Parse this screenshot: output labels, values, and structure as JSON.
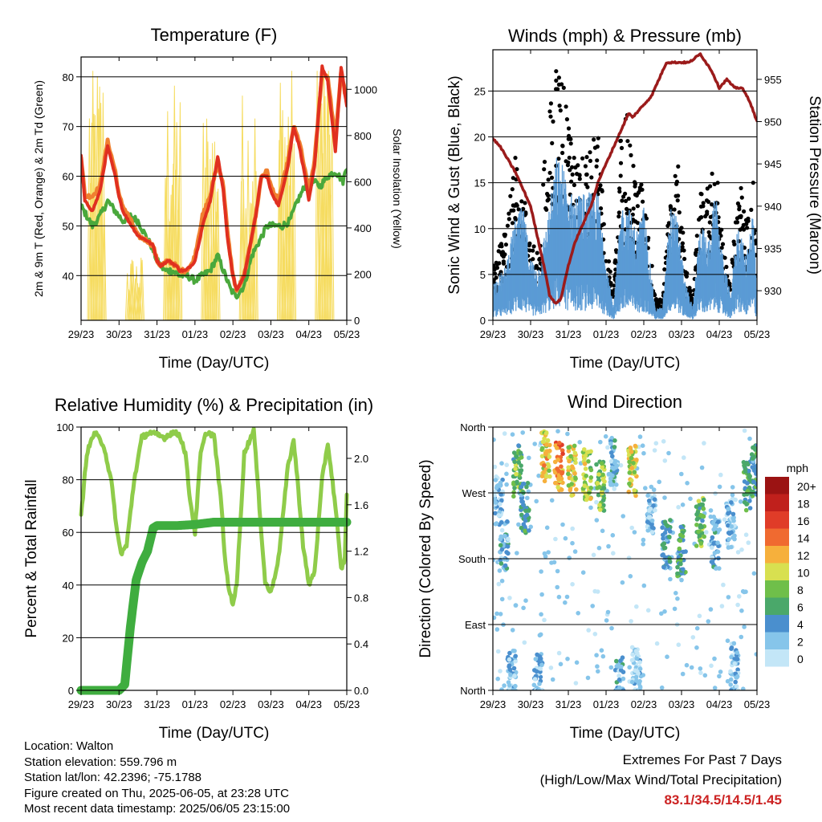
{
  "colors": {
    "temp2m": "#e03020",
    "temp9m": "#f08030",
    "dewpoint": "#4aa83c",
    "solar": "#f6dc60",
    "wind": "#5b9bd5",
    "gust": "#000000",
    "pressure": "#9b1b1b",
    "rh": "#8fcc4a",
    "precip": "#3fad3f",
    "extremes": "#cc2222"
  },
  "info": {
    "location": "Location: Walton",
    "elevation": "Station elevation: 559.796 m",
    "latlon": "Station lat/lon: 42.2396; -75.1788",
    "created": "Figure created on Thu, 2025-06-05, at 23:28 UTC",
    "latest": "Most recent data timestamp: 2025/06/05 23:15:00"
  },
  "extremes": {
    "line1": "Extremes For Past 7 Days",
    "line2": "(High/Low/Max Wind/Total Precipitation)",
    "values": "83.1/34.5/14.5/1.45"
  },
  "chart_data": [
    {
      "id": "temperature",
      "type": "line",
      "title": "Temperature (F)",
      "xlabel": "Time (Day/UTC)",
      "ylabel": "2m & 9m T (Red, Orange) & 2m Td (Green)",
      "y2label": "Solar Insolation (Yellow)",
      "xticks": [
        "29/23",
        "30/23",
        "31/23",
        "01/23",
        "02/23",
        "03/23",
        "04/23",
        "05/23"
      ],
      "xlim": [
        0,
        7
      ],
      "ylim": [
        31,
        84
      ],
      "y2lim": [
        0,
        1140
      ],
      "yticks": [
        40,
        50,
        60,
        70,
        80
      ],
      "y2ticks": [
        0,
        200,
        400,
        600,
        800,
        1000
      ],
      "series": [
        {
          "name": "Solar Insolation",
          "axis": "y2",
          "style": "solar",
          "x": [
            0,
            0.2,
            0.35,
            0.5,
            0.65,
            0.8,
            1.0,
            1.2,
            1.35,
            1.5,
            1.65,
            1.8,
            2.0,
            2.2,
            2.35,
            2.5,
            2.65,
            2.8,
            3.0,
            3.2,
            3.35,
            3.5,
            3.65,
            3.8,
            4.0,
            4.2,
            4.35,
            4.5,
            4.65,
            4.8,
            5.0,
            5.2,
            5.35,
            5.5,
            5.65,
            5.8,
            6.0,
            6.2,
            6.35,
            6.5,
            6.65,
            6.8,
            7.0
          ],
          "y": [
            0,
            0,
            400,
            1000,
            700,
            150,
            0,
            0,
            80,
            250,
            120,
            20,
            0,
            0,
            300,
            900,
            350,
            50,
            0,
            0,
            600,
            850,
            780,
            300,
            0,
            0,
            650,
            880,
            900,
            350,
            0,
            0,
            850,
            1000,
            1050,
            450,
            0,
            0,
            950,
            1080,
            1100,
            500,
            0
          ]
        },
        {
          "name": "2m T",
          "axis": "y",
          "style": "red",
          "x": [
            0,
            0.1,
            0.3,
            0.5,
            0.7,
            0.9,
            1.0,
            1.1,
            1.25,
            1.5,
            1.75,
            1.9,
            2.0,
            2.1,
            2.3,
            2.5,
            2.6,
            2.75,
            2.9,
            3.0,
            3.2,
            3.4,
            3.6,
            3.75,
            3.85,
            4.0,
            4.1,
            4.3,
            4.6,
            4.75,
            4.9,
            5.0,
            5.2,
            5.45,
            5.6,
            5.75,
            5.9,
            6.0,
            6.15,
            6.35,
            6.5,
            6.7,
            6.85,
            7.0
          ],
          "y": [
            64,
            55,
            53,
            57,
            66,
            60,
            56,
            53,
            51,
            48,
            47,
            46,
            43,
            42,
            43,
            42,
            41,
            41,
            42,
            43,
            50,
            55,
            64,
            57,
            48,
            40,
            37,
            40,
            52,
            60,
            60,
            57,
            54,
            62,
            70,
            66,
            60,
            55,
            62,
            82,
            79,
            65,
            82,
            74
          ]
        },
        {
          "name": "9m T",
          "axis": "y",
          "style": "orange",
          "x": [
            0,
            0.1,
            0.3,
            0.5,
            0.7,
            0.9,
            1.0,
            1.1,
            1.25,
            1.5,
            1.75,
            1.9,
            2.0,
            2.1,
            2.3,
            2.5,
            2.6,
            2.75,
            2.9,
            3.0,
            3.2,
            3.4,
            3.6,
            3.75,
            3.85,
            4.0,
            4.1,
            4.3,
            4.6,
            4.75,
            4.9,
            5.0,
            5.2,
            5.45,
            5.6,
            5.75,
            5.9,
            6.0,
            6.15,
            6.35,
            6.5,
            6.7,
            6.85,
            7.0
          ],
          "y": [
            64,
            56,
            56,
            58,
            67,
            61,
            56,
            54,
            52,
            48,
            47,
            46,
            43,
            42,
            43,
            42,
            41,
            41,
            42,
            44,
            52,
            56,
            63,
            58,
            49,
            40,
            37,
            40,
            52,
            60,
            61,
            58,
            55,
            63,
            70,
            67,
            61,
            57,
            63,
            81,
            80,
            67,
            81,
            75
          ]
        },
        {
          "name": "2m Td",
          "axis": "y",
          "style": "green",
          "x": [
            0,
            0.15,
            0.3,
            0.5,
            0.7,
            0.9,
            1.1,
            1.3,
            1.5,
            1.7,
            1.85,
            2.0,
            2.2,
            2.4,
            2.6,
            2.8,
            3.0,
            3.2,
            3.4,
            3.6,
            3.8,
            3.95,
            4.1,
            4.3,
            4.5,
            4.7,
            4.9,
            5.1,
            5.3,
            5.5,
            5.7,
            5.9,
            6.1,
            6.3,
            6.5,
            6.7,
            6.9,
            7.0
          ],
          "y": [
            54,
            52,
            50,
            52,
            55,
            53,
            51,
            52,
            51,
            48,
            46,
            43,
            41,
            41,
            40,
            40,
            39,
            40,
            41,
            44,
            40,
            37,
            36,
            38,
            44,
            47,
            50,
            50,
            50,
            51,
            55,
            58,
            59,
            58,
            60,
            61,
            59,
            62
          ]
        }
      ]
    },
    {
      "id": "winds",
      "type": "scatter",
      "title": "Winds (mph) & Pressure (mb)",
      "xlabel": "Time (Day/UTC)",
      "ylabel": "Sonic Wind & Gust (Blue, Black)",
      "y2label": "Station Pressure (Maroon)",
      "xticks": [
        "29/23",
        "30/23",
        "31/23",
        "01/23",
        "02/23",
        "03/23",
        "04/23",
        "05/23"
      ],
      "xlim": [
        0,
        7
      ],
      "ylim": [
        0,
        29.5
      ],
      "y2lim": [
        926.5,
        958.5
      ],
      "yticks": [
        0,
        5,
        10,
        15,
        20,
        25
      ],
      "y2ticks": [
        930,
        935,
        940,
        945,
        950,
        955
      ],
      "series": [
        {
          "name": "Sonic Wind",
          "axis": "y",
          "style": "windband",
          "x": [
            0,
            0.3,
            0.6,
            0.8,
            1.0,
            1.2,
            1.5,
            1.7,
            1.9,
            2.0,
            2.2,
            2.5,
            2.8,
            3.0,
            3.2,
            3.4,
            3.6,
            3.8,
            4.0,
            4.3,
            4.5,
            4.7,
            4.9,
            5.1,
            5.3,
            5.5,
            5.7,
            5.9,
            6.1,
            6.3,
            6.5,
            6.7,
            6.9,
            7.0
          ],
          "y": [
            3,
            4,
            8,
            9,
            5,
            4,
            9,
            13,
            12,
            10,
            10,
            10,
            10,
            5,
            1,
            9,
            9,
            7,
            9,
            1,
            1,
            9,
            8,
            3,
            1,
            8,
            6,
            10,
            5,
            2,
            8,
            5,
            9,
            2
          ]
        },
        {
          "name": "Gust",
          "axis": "y",
          "style": "gustdots",
          "x": [
            0,
            0.3,
            0.6,
            0.8,
            1.0,
            1.2,
            1.5,
            1.7,
            1.9,
            2.0,
            2.2,
            2.5,
            2.8,
            3.0,
            3.2,
            3.4,
            3.6,
            3.8,
            4.0,
            4.3,
            4.5,
            4.7,
            4.9,
            5.1,
            5.3,
            5.5,
            5.7,
            5.9,
            6.1,
            6.3,
            6.5,
            6.7,
            6.9,
            7.0
          ],
          "y": [
            5,
            8,
            15,
            13,
            7,
            7,
            20,
            25,
            21,
            18,
            14,
            16,
            17,
            7,
            3,
            18,
            19,
            12,
            13,
            2,
            2,
            13,
            15,
            5,
            2,
            13,
            12,
            15,
            7,
            3,
            15,
            9,
            15,
            4
          ]
        },
        {
          "name": "Station Pressure",
          "axis": "y2",
          "style": "pressure",
          "x": [
            0,
            0.2,
            0.4,
            0.6,
            0.8,
            1.0,
            1.2,
            1.4,
            1.5,
            1.65,
            1.8,
            2.0,
            2.2,
            2.4,
            2.6,
            2.8,
            3.0,
            3.2,
            3.4,
            3.6,
            3.7,
            3.8,
            4.0,
            4.2,
            4.4,
            4.6,
            4.8,
            5.0,
            5.2,
            5.5,
            5.8,
            6.0,
            6.2,
            6.4,
            6.6,
            6.8,
            7.0
          ],
          "y": [
            948,
            947,
            945.5,
            944,
            942,
            940,
            936,
            932,
            929.5,
            928.5,
            929,
            933,
            936,
            938,
            940,
            943,
            945,
            947,
            949,
            951,
            950.5,
            951,
            952,
            953,
            955,
            957,
            957,
            957,
            957,
            958,
            956,
            954,
            955,
            954,
            954,
            952.5,
            950
          ]
        }
      ]
    },
    {
      "id": "humidity",
      "type": "line",
      "title": "Relative Humidity (%) & Precipitation (in)",
      "xlabel": "Time (Day/UTC)",
      "ylabel": "Percent & Total Rainfall",
      "xticks": [
        "29/23",
        "30/23",
        "31/23",
        "01/23",
        "02/23",
        "03/23",
        "04/23",
        "05/23"
      ],
      "xlim": [
        0,
        7
      ],
      "ylim": [
        0,
        100
      ],
      "y2lim": [
        0,
        2.27
      ],
      "yticks": [
        0,
        20,
        40,
        60,
        80,
        100
      ],
      "y2ticks": [
        0.0,
        0.4,
        0.8,
        1.2,
        1.6,
        2.0
      ],
      "y2ticklabels": [
        "0.0",
        "0.4",
        "0.8",
        "1.2",
        "1.6",
        "2.0"
      ],
      "series": [
        {
          "name": "Relative Humidity",
          "axis": "y",
          "style": "rh",
          "x": [
            0,
            0.15,
            0.35,
            0.6,
            0.8,
            0.95,
            1.05,
            1.2,
            1.4,
            1.6,
            1.8,
            2.0,
            2.2,
            2.4,
            2.6,
            2.75,
            2.85,
            3.0,
            3.15,
            3.3,
            3.5,
            3.7,
            3.8,
            3.9,
            4.0,
            4.1,
            4.3,
            4.55,
            4.75,
            4.85,
            5.0,
            5.2,
            5.45,
            5.6,
            5.7,
            5.85,
            6.0,
            6.15,
            6.35,
            6.5,
            6.7,
            6.85,
            6.95,
            7.0
          ],
          "y": [
            66,
            90,
            98,
            93,
            79,
            60,
            52,
            55,
            80,
            96,
            98,
            97,
            96,
            98,
            97,
            90,
            75,
            60,
            90,
            98,
            97,
            70,
            48,
            38,
            33,
            40,
            90,
            99,
            60,
            41,
            37,
            50,
            85,
            95,
            80,
            55,
            40,
            45,
            80,
            94,
            70,
            46,
            50,
            75
          ]
        },
        {
          "name": "Total Precipitation",
          "axis": "y2",
          "style": "precip",
          "x": [
            0,
            0.5,
            1.0,
            1.15,
            1.3,
            1.45,
            1.6,
            1.75,
            1.9,
            2.0,
            2.5,
            3.0,
            3.5,
            4.0,
            5.0,
            6.0,
            7.0
          ],
          "y": [
            0,
            0,
            0,
            0.05,
            0.55,
            0.95,
            1.1,
            1.2,
            1.4,
            1.42,
            1.42,
            1.43,
            1.45,
            1.45,
            1.45,
            1.45,
            1.45
          ]
        }
      ]
    },
    {
      "id": "direction",
      "type": "scatter",
      "title": "Wind Direction",
      "xlabel": "Time (Day/UTC)",
      "ylabel": "Direction (Colored By Speed)",
      "xticks": [
        "29/23",
        "30/23",
        "31/23",
        "01/23",
        "02/23",
        "03/23",
        "04/23",
        "05/23"
      ],
      "yticks": [
        "North",
        "East",
        "South",
        "West",
        "North"
      ],
      "xlim": [
        0,
        7
      ],
      "ylim": [
        0,
        360
      ],
      "legend": {
        "title": "mph",
        "labels": [
          "0",
          "2",
          "4",
          "6",
          "8",
          "10",
          "12",
          "14",
          "16",
          "18",
          "20+"
        ],
        "colors": [
          "#c3e6f7",
          "#86c5ea",
          "#4a8fce",
          "#4aa86a",
          "#6fbf4a",
          "#d8e050",
          "#f6b03c",
          "#f06a30",
          "#e03c28",
          "#c0201c",
          "#9b1313"
        ]
      },
      "clusters": [
        {
          "x": 0.15,
          "dir": 260,
          "speed": 2
        },
        {
          "x": 0.3,
          "dir": 200,
          "speed": 3
        },
        {
          "x": 0.65,
          "dir": 300,
          "speed": 7
        },
        {
          "x": 0.85,
          "dir": 250,
          "speed": 5
        },
        {
          "x": 1.4,
          "dir": 320,
          "speed": 11
        },
        {
          "x": 1.75,
          "dir": 305,
          "speed": 13
        },
        {
          "x": 2.1,
          "dir": 300,
          "speed": 10
        },
        {
          "x": 2.5,
          "dir": 295,
          "speed": 9
        },
        {
          "x": 2.85,
          "dir": 280,
          "speed": 8
        },
        {
          "x": 3.2,
          "dir": 310,
          "speed": 3
        },
        {
          "x": 3.7,
          "dir": 300,
          "speed": 10
        },
        {
          "x": 4.2,
          "dir": 250,
          "speed": 2
        },
        {
          "x": 4.6,
          "dir": 200,
          "speed": 4
        },
        {
          "x": 5.0,
          "dir": 190,
          "speed": 6
        },
        {
          "x": 5.5,
          "dir": 230,
          "speed": 7
        },
        {
          "x": 5.9,
          "dir": 200,
          "speed": 3
        },
        {
          "x": 6.3,
          "dir": 230,
          "speed": 2
        },
        {
          "x": 6.75,
          "dir": 280,
          "speed": 6
        },
        {
          "x": 6.95,
          "dir": 300,
          "speed": 5
        },
        {
          "x": 0.5,
          "dir": 20,
          "speed": 2
        },
        {
          "x": 1.2,
          "dir": 15,
          "speed": 2
        },
        {
          "x": 3.35,
          "dir": 10,
          "speed": 3
        },
        {
          "x": 3.8,
          "dir": 25,
          "speed": 1
        },
        {
          "x": 6.4,
          "dir": 30,
          "speed": 2
        }
      ]
    }
  ]
}
